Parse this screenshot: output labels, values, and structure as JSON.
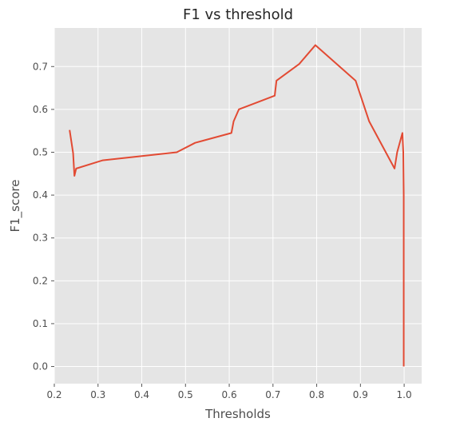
{
  "chart_data": {
    "type": "line",
    "title": "F1 vs threshold",
    "xlabel": "Thresholds",
    "ylabel": "F1_score",
    "xlim": [
      0.2,
      1.04
    ],
    "ylim": [
      -0.04,
      0.79
    ],
    "xticks": [
      "0.2",
      "0.3",
      "0.4",
      "0.5",
      "0.6",
      "0.7",
      "0.8",
      "0.9",
      "1.0"
    ],
    "yticks": [
      "0.0",
      "0.1",
      "0.2",
      "0.3",
      "0.4",
      "0.5",
      "0.6",
      "0.7"
    ],
    "grid": true,
    "background": "#e5e5e5",
    "grid_color": "#ffffff",
    "series": [
      {
        "color": "#e24a33",
        "x": [
          0.235,
          0.243,
          0.246,
          0.25,
          0.31,
          0.48,
          0.522,
          0.605,
          0.61,
          0.622,
          0.704,
          0.708,
          0.76,
          0.797,
          0.889,
          0.92,
          0.978,
          0.984,
          0.996,
          0.998,
          0.999,
          0.999
        ],
        "y": [
          0.552,
          0.498,
          0.445,
          0.462,
          0.481,
          0.5,
          0.522,
          0.545,
          0.572,
          0.6,
          0.632,
          0.667,
          0.706,
          0.75,
          0.667,
          0.572,
          0.462,
          0.5,
          0.545,
          0.5,
          0.4,
          0.0
        ]
      }
    ]
  }
}
